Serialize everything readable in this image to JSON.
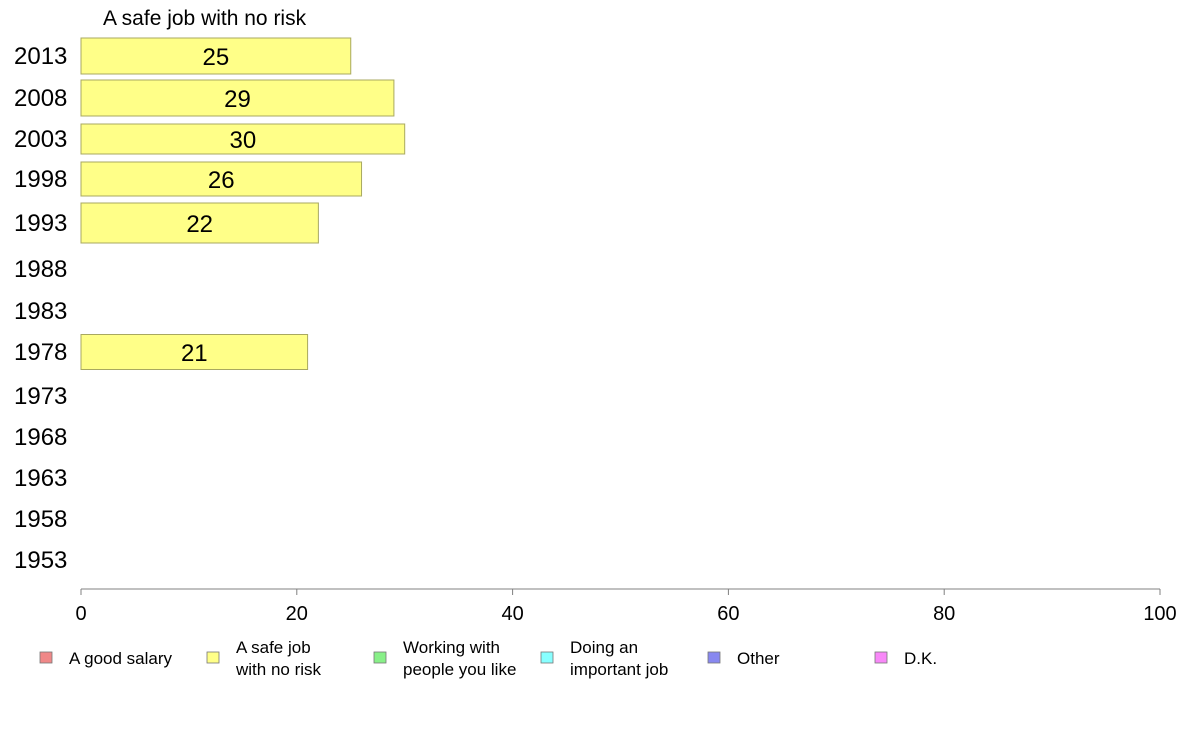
{
  "chart_data": {
    "type": "bar",
    "orientation": "horizontal",
    "title": "A safe job with no risk",
    "categories": [
      "2013",
      "2008",
      "2003",
      "1998",
      "1993",
      "1988",
      "1983",
      "1978",
      "1973",
      "1968",
      "1963",
      "1958",
      "1953"
    ],
    "series": [
      {
        "name": "A safe job with no risk",
        "color": "#ffff88",
        "values": [
          25,
          29,
          30,
          26,
          22,
          null,
          null,
          21,
          null,
          null,
          null,
          null,
          null
        ],
        "labels": [
          "25",
          "29",
          "30",
          "26",
          "22",
          "",
          "",
          "21",
          "",
          "",
          "",
          "",
          ""
        ]
      }
    ],
    "xlim": [
      0,
      100
    ],
    "xticks": [
      "0",
      "20",
      "40",
      "60",
      "80",
      "100"
    ],
    "grid": false,
    "legend": {
      "placement": "bottom",
      "items": [
        {
          "lines": [
            "A good salary"
          ],
          "color": "#f08888"
        },
        {
          "lines": [
            "A safe job",
            "with no risk"
          ],
          "color": "#ffff88"
        },
        {
          "lines": [
            "Working with",
            "people you like"
          ],
          "color": "#88f088"
        },
        {
          "lines": [
            "Doing an",
            "important job"
          ],
          "color": "#88ffff"
        },
        {
          "lines": [
            "Other"
          ],
          "color": "#8888f0"
        },
        {
          "lines": [
            "D.K."
          ],
          "color": "#f888f8"
        }
      ]
    }
  }
}
